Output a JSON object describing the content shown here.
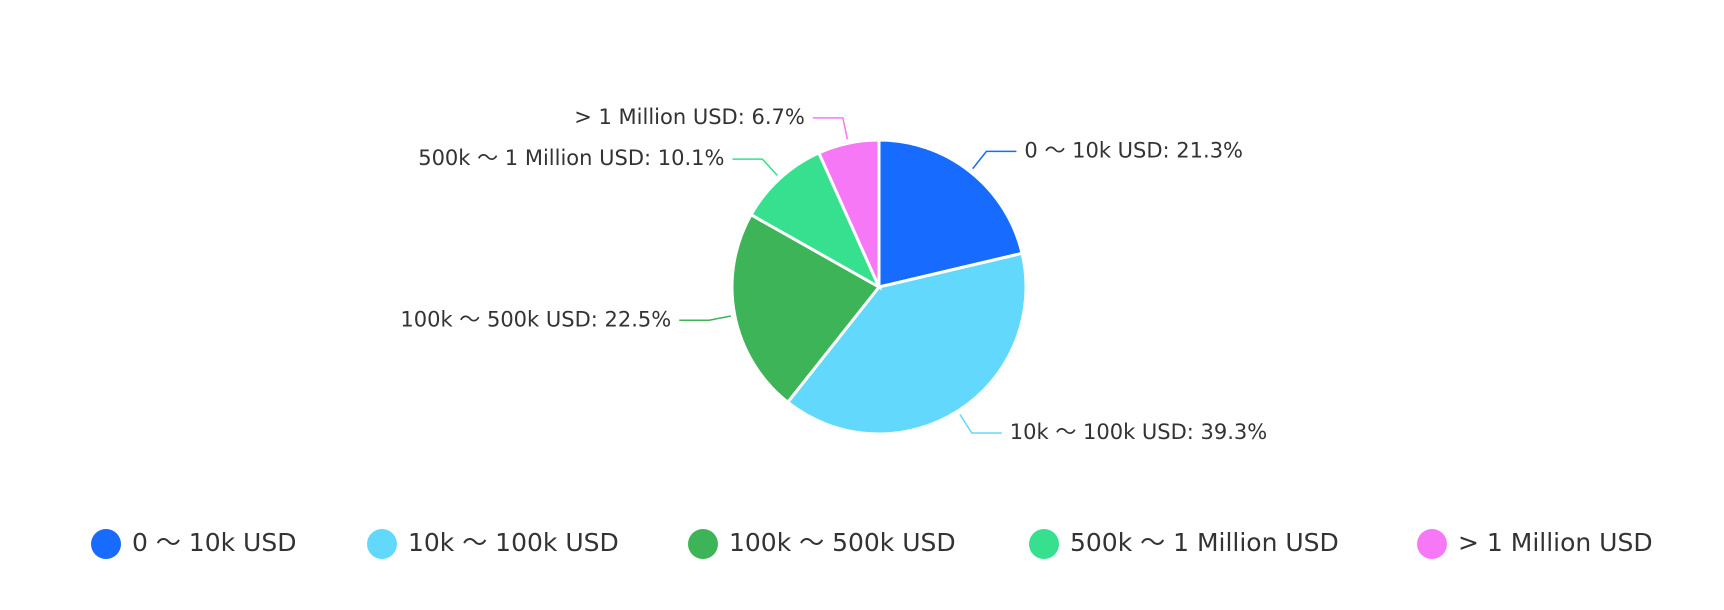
{
  "chart_data": {
    "type": "pie",
    "categories": [
      "0 ～ 10k USD",
      "10k ～ 100k USD",
      "100k ～ 500k USD",
      "500k ～ 1 Million USD",
      "> 1 Million USD"
    ],
    "values": [
      21.3,
      39.3,
      22.5,
      10.1,
      6.7
    ],
    "value_labels": [
      "0 ～ 10k USD: 21.3%",
      "10k ～ 100k USD: 39.3%",
      "100k ～ 500k USD: 22.5%",
      "500k ～ 1 Million USD: 10.1%",
      "> 1 Million USD: 6.7%"
    ],
    "colors": [
      "#176bff",
      "#62d8fd",
      "#3cb457",
      "#37e08f",
      "#f778f6"
    ],
    "legend": "bottom"
  }
}
